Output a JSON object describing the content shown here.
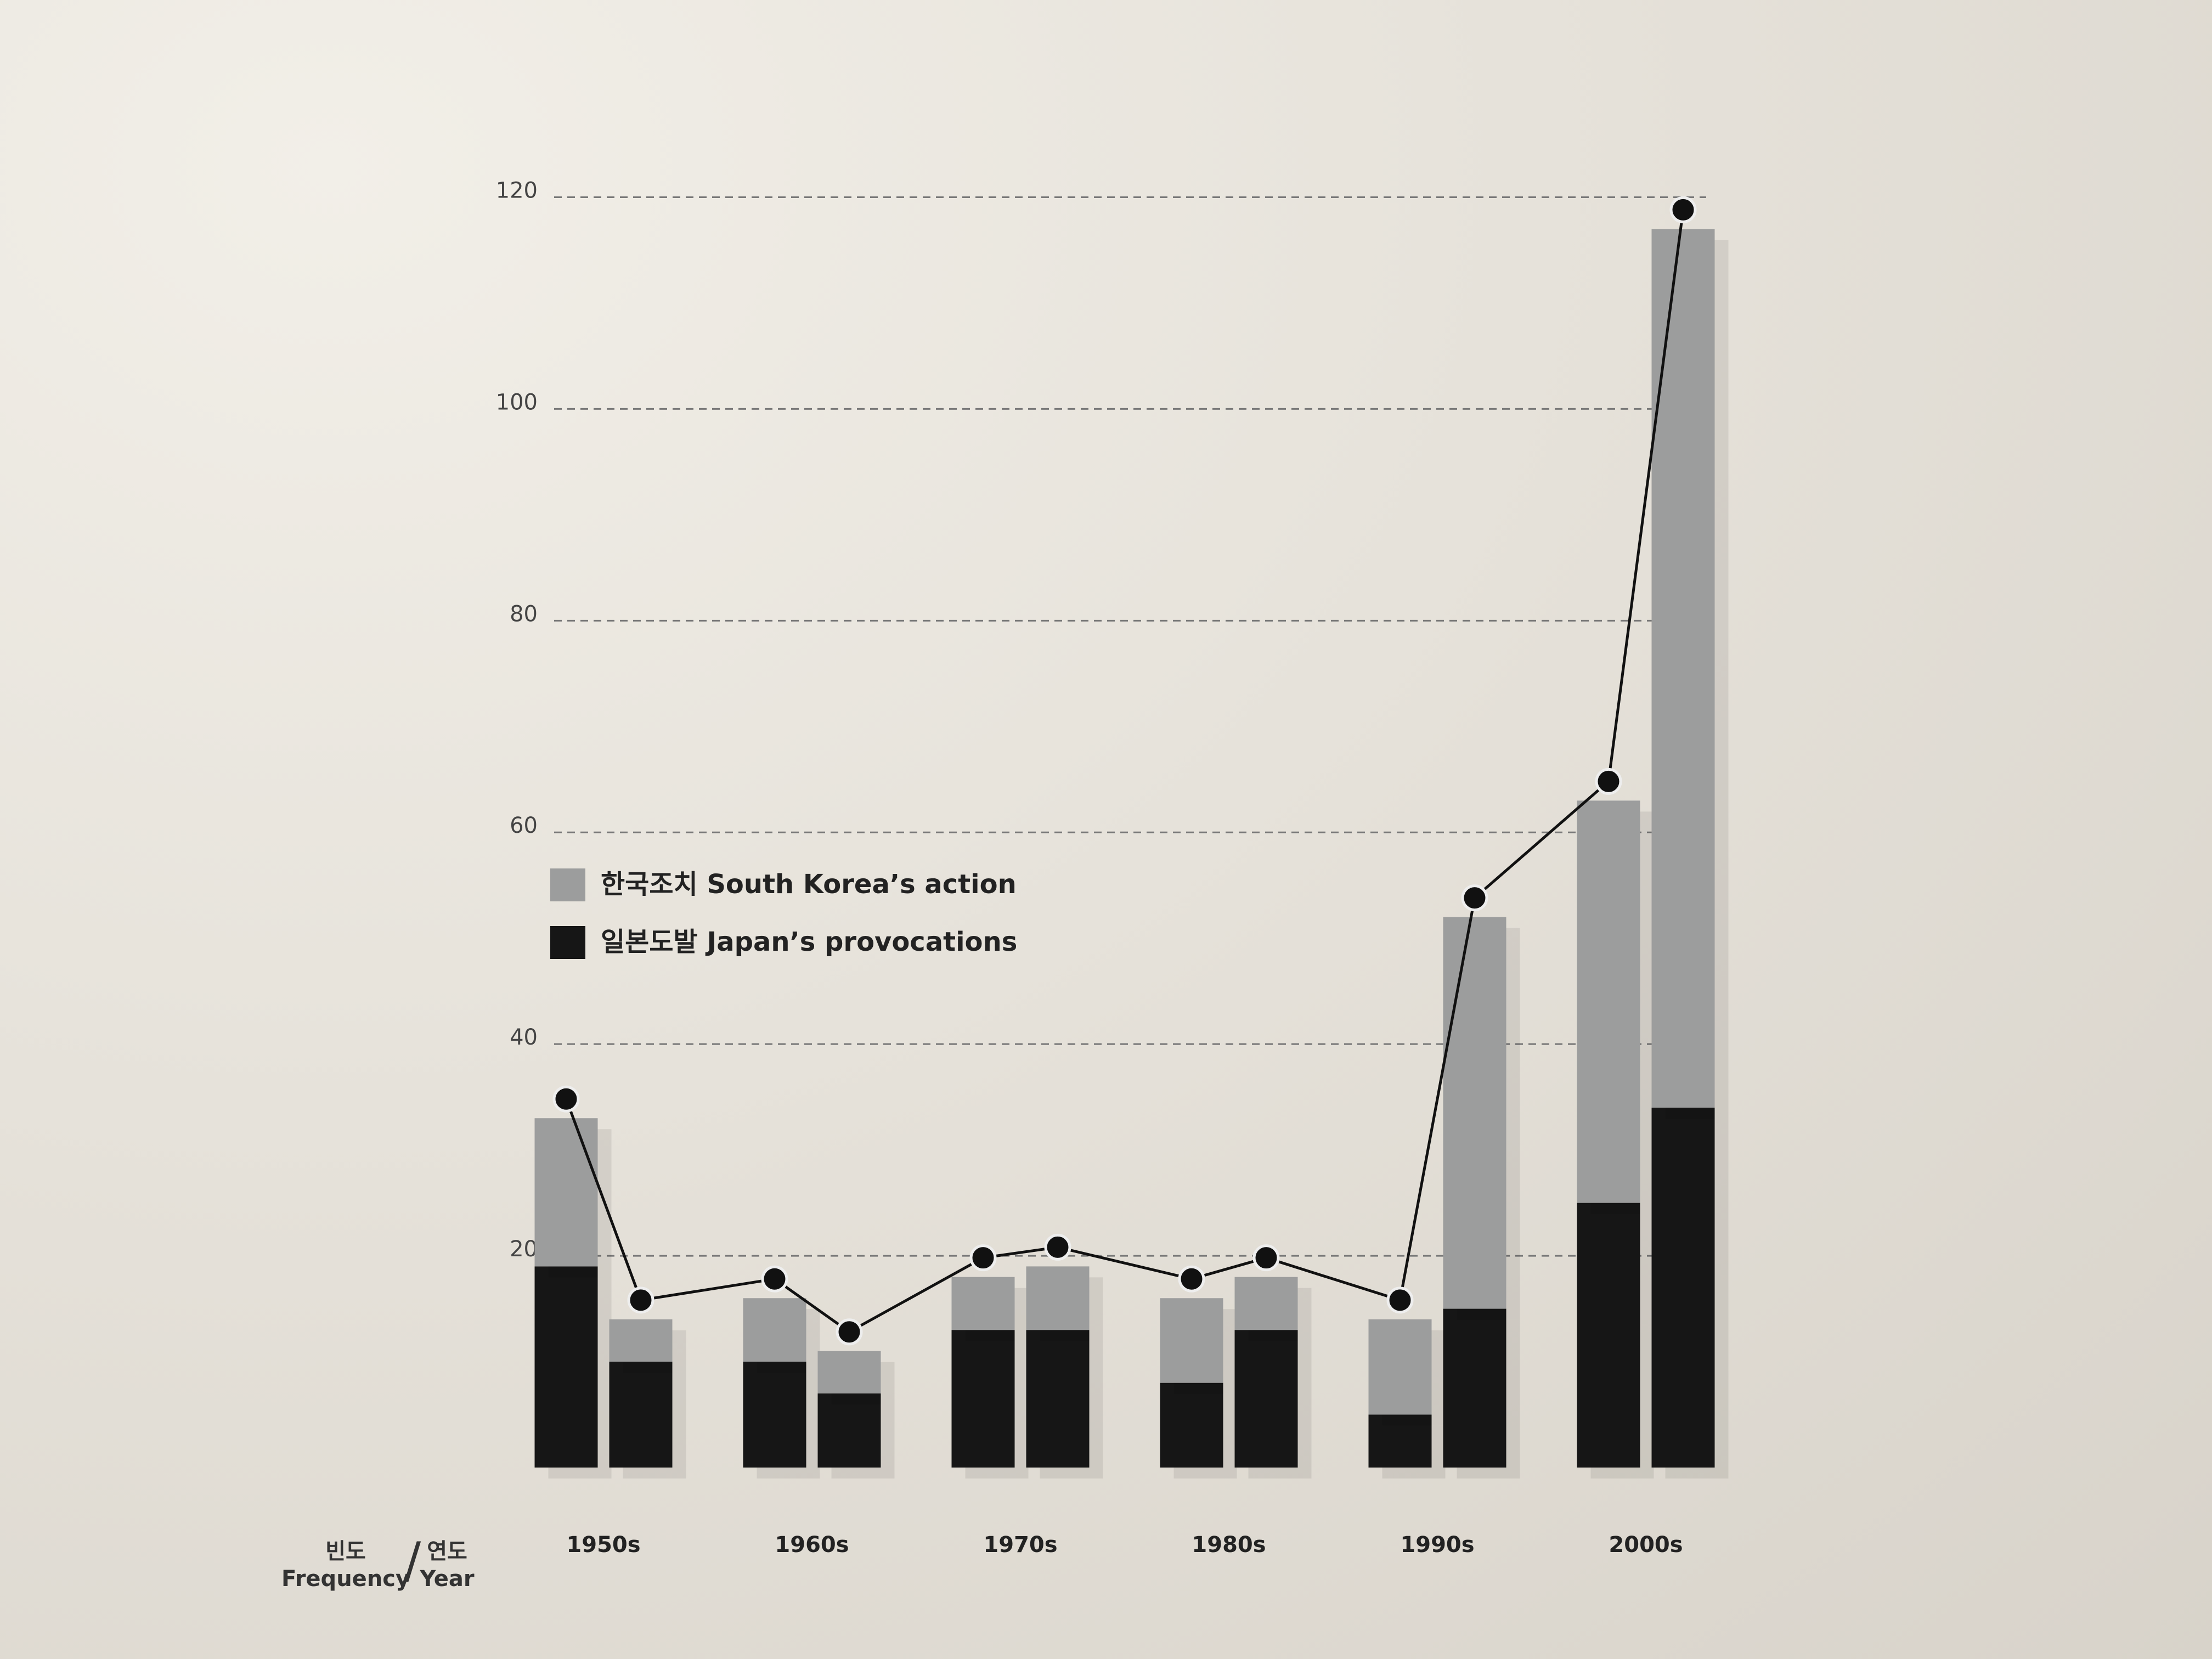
{
  "chart_data": {
    "type": "stacked_bar",
    "categories": [
      "1950s",
      null,
      "1960s",
      null,
      "1970s",
      null,
      "1980s",
      null,
      "1990s",
      null,
      "2000s",
      null
    ],
    "series": [
      {
        "name": "일본도발 Japan’s provocations",
        "color": "#161616",
        "values": [
          19,
          10,
          10,
          7,
          13,
          13,
          8,
          13,
          5,
          15,
          25,
          34
        ]
      },
      {
        "name": "한국조치 South Korea’s action",
        "color": "#9c9d9d",
        "values": [
          14,
          4,
          6,
          4,
          5,
          6,
          8,
          5,
          9,
          37,
          38,
          83
        ]
      }
    ],
    "ylim": [
      0,
      125
    ],
    "yticks": [
      20,
      40,
      60,
      80,
      100,
      120
    ],
    "grid": true,
    "y_label": "빈도",
    "y_label_en": "Frequency",
    "x_label": "연도",
    "x_label_en": "Year",
    "separator": "/",
    "total_line": true
  }
}
